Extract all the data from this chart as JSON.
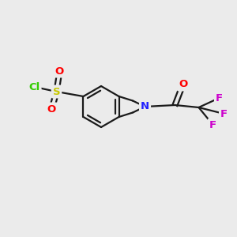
{
  "background_color": "#ebebeb",
  "bond_color": "#1a1a1a",
  "atom_colors": {
    "S": "#c8c800",
    "O": "#ff0000",
    "Cl": "#33cc00",
    "N": "#2020ff",
    "F": "#cc00cc",
    "C": "#1a1a1a"
  },
  "figsize": [
    3.0,
    3.0
  ],
  "dpi": 100
}
